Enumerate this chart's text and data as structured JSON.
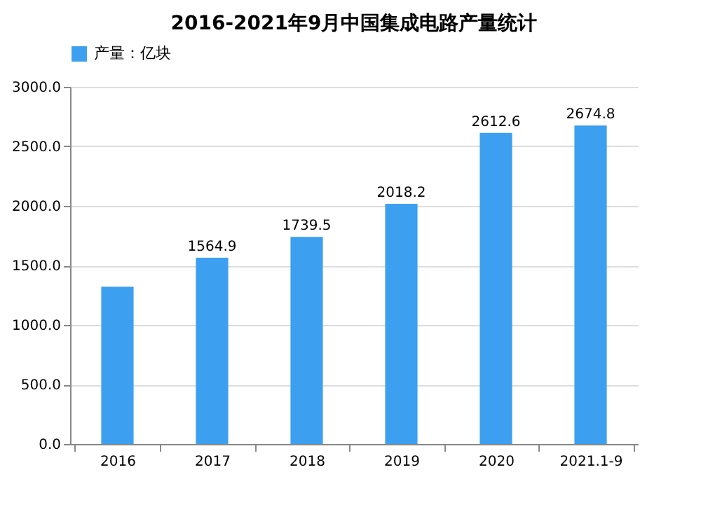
{
  "chart_data": {
    "type": "bar",
    "title": "2016-2021年9月中国集成电路产量统计",
    "categories": [
      "2016",
      "2017",
      "2018",
      "2019",
      "2020",
      "2021.1-9"
    ],
    "series": [
      {
        "name": "产量：亿块",
        "color": "#3d9ff0",
        "values": [
          1320,
          1564.9,
          1739.5,
          2018.2,
          2612.6,
          2674.8
        ]
      }
    ],
    "value_labels": [
      null,
      "1564.9",
      "1739.5",
      "2018.2",
      "2612.6",
      "2674.8"
    ],
    "ylim": [
      0,
      3000
    ],
    "yticks": [
      {
        "value": 0,
        "label": "0.0"
      },
      {
        "value": 500,
        "label": "500.0"
      },
      {
        "value": 1000,
        "label": "1000.0"
      },
      {
        "value": 1500,
        "label": "1500.0"
      },
      {
        "value": 2000,
        "label": "2000.0"
      },
      {
        "value": 2500,
        "label": "2500.0"
      },
      {
        "value": 3000,
        "label": "3000.0"
      }
    ],
    "grid": "y",
    "legend": "top"
  }
}
